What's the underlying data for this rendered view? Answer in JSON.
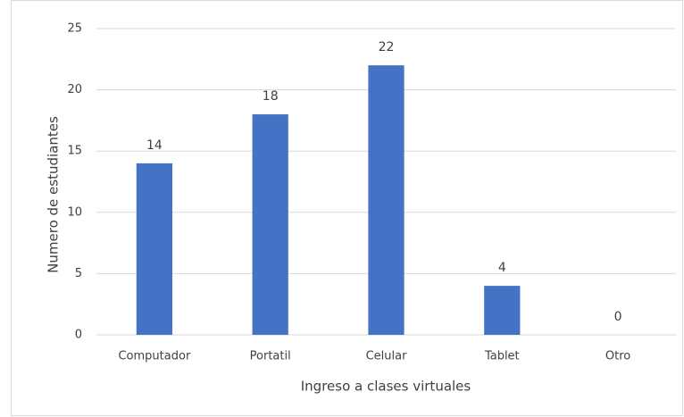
{
  "chart_data": {
    "type": "bar",
    "x_label": "Ingreso a clases virtuales",
    "y_label": "Numero de estudiantes",
    "categories": [
      "Computador",
      "Portatil",
      "Celular",
      "Tablet",
      "Otro"
    ],
    "values": [
      14,
      18,
      22,
      4,
      0
    ],
    "color": "#4472c4",
    "ylim": [
      0,
      25
    ],
    "yticks": [
      0,
      5,
      10,
      15,
      20,
      25
    ],
    "grid": true
  }
}
